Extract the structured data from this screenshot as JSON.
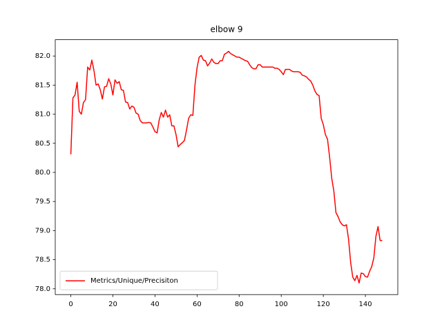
{
  "chart_data": {
    "type": "line",
    "title": "elbow 9",
    "x": [
      0,
      1,
      2,
      3,
      4,
      5,
      6,
      7,
      8,
      9,
      10,
      11,
      12,
      13,
      14,
      15,
      16,
      17,
      18,
      19,
      20,
      21,
      22,
      23,
      24,
      25,
      26,
      27,
      28,
      29,
      30,
      31,
      32,
      33,
      34,
      35,
      36,
      37,
      38,
      39,
      40,
      41,
      42,
      43,
      44,
      45,
      46,
      47,
      48,
      49,
      50,
      51,
      52,
      53,
      54,
      55,
      56,
      57,
      58,
      59,
      60,
      61,
      62,
      63,
      64,
      65,
      66,
      67,
      68,
      69,
      70,
      71,
      72,
      73,
      74,
      75,
      76,
      77,
      78,
      79,
      80,
      81,
      82,
      83,
      84,
      85,
      86,
      87,
      88,
      89,
      90,
      91,
      92,
      93,
      94,
      95,
      96,
      97,
      98,
      99,
      100,
      101,
      102,
      103,
      104,
      105,
      106,
      107,
      108,
      109,
      110,
      111,
      112,
      113,
      114,
      115,
      116,
      117,
      118,
      119,
      120,
      121,
      122,
      123,
      124,
      125,
      126,
      127,
      128,
      129,
      130,
      131,
      132,
      133,
      134,
      135,
      136,
      137,
      138,
      139,
      140,
      141,
      142,
      143,
      144,
      145,
      146,
      147,
      148
    ],
    "series": [
      {
        "name": "Metrics/Unique/Precisiton",
        "color": "#ff0000",
        "values": [
          80.31,
          81.28,
          81.33,
          81.55,
          81.05,
          81.0,
          81.2,
          81.25,
          81.81,
          81.76,
          81.93,
          81.75,
          81.5,
          81.52,
          81.42,
          81.26,
          81.47,
          81.48,
          81.61,
          81.52,
          81.33,
          81.59,
          81.53,
          81.56,
          81.42,
          81.41,
          81.21,
          81.2,
          81.09,
          81.14,
          81.12,
          81.02,
          81.0,
          80.89,
          80.85,
          80.85,
          80.85,
          80.86,
          80.85,
          80.78,
          80.7,
          80.68,
          80.9,
          81.03,
          80.95,
          81.07,
          80.95,
          80.99,
          80.8,
          80.8,
          80.65,
          80.44,
          80.48,
          80.51,
          80.55,
          80.73,
          80.93,
          80.99,
          80.98,
          81.5,
          81.8,
          81.98,
          82.01,
          81.93,
          81.92,
          81.83,
          81.88,
          81.95,
          81.89,
          81.87,
          81.87,
          81.92,
          81.92,
          82.03,
          82.05,
          82.08,
          82.04,
          82.02,
          82.0,
          81.98,
          81.98,
          81.96,
          81.94,
          81.92,
          81.91,
          81.85,
          81.8,
          81.78,
          81.78,
          81.85,
          81.85,
          81.81,
          81.81,
          81.81,
          81.81,
          81.81,
          81.81,
          81.79,
          81.79,
          81.77,
          81.73,
          81.68,
          81.77,
          81.77,
          81.77,
          81.74,
          81.73,
          81.73,
          81.73,
          81.72,
          81.67,
          81.66,
          81.64,
          81.6,
          81.57,
          81.5,
          81.4,
          81.34,
          81.32,
          80.93,
          80.82,
          80.65,
          80.57,
          80.26,
          79.9,
          79.68,
          79.31,
          79.24,
          79.15,
          79.1,
          79.08,
          79.1,
          78.85,
          78.45,
          78.2,
          78.14,
          78.23,
          78.1,
          78.27,
          78.26,
          78.21,
          78.2,
          78.3,
          78.38,
          78.53,
          78.9,
          79.07,
          78.83,
          78.83
        ]
      }
    ],
    "xlim": [
      -7.4,
      155.4
    ],
    "xticks": [
      0,
      20,
      40,
      60,
      80,
      100,
      120,
      140
    ],
    "ylim": [
      77.9,
      82.28
    ],
    "yticks": [
      {
        "value": 78,
        "label": "78.0"
      },
      78.5,
      {
        "value": 79,
        "label": "79.0"
      },
      79.5,
      {
        "value": 80,
        "label": "80.0"
      },
      80.5,
      {
        "value": 81,
        "label": "81.0"
      },
      81.5,
      {
        "value": 82,
        "label": "82.0"
      }
    ],
    "legend": "lower left"
  }
}
